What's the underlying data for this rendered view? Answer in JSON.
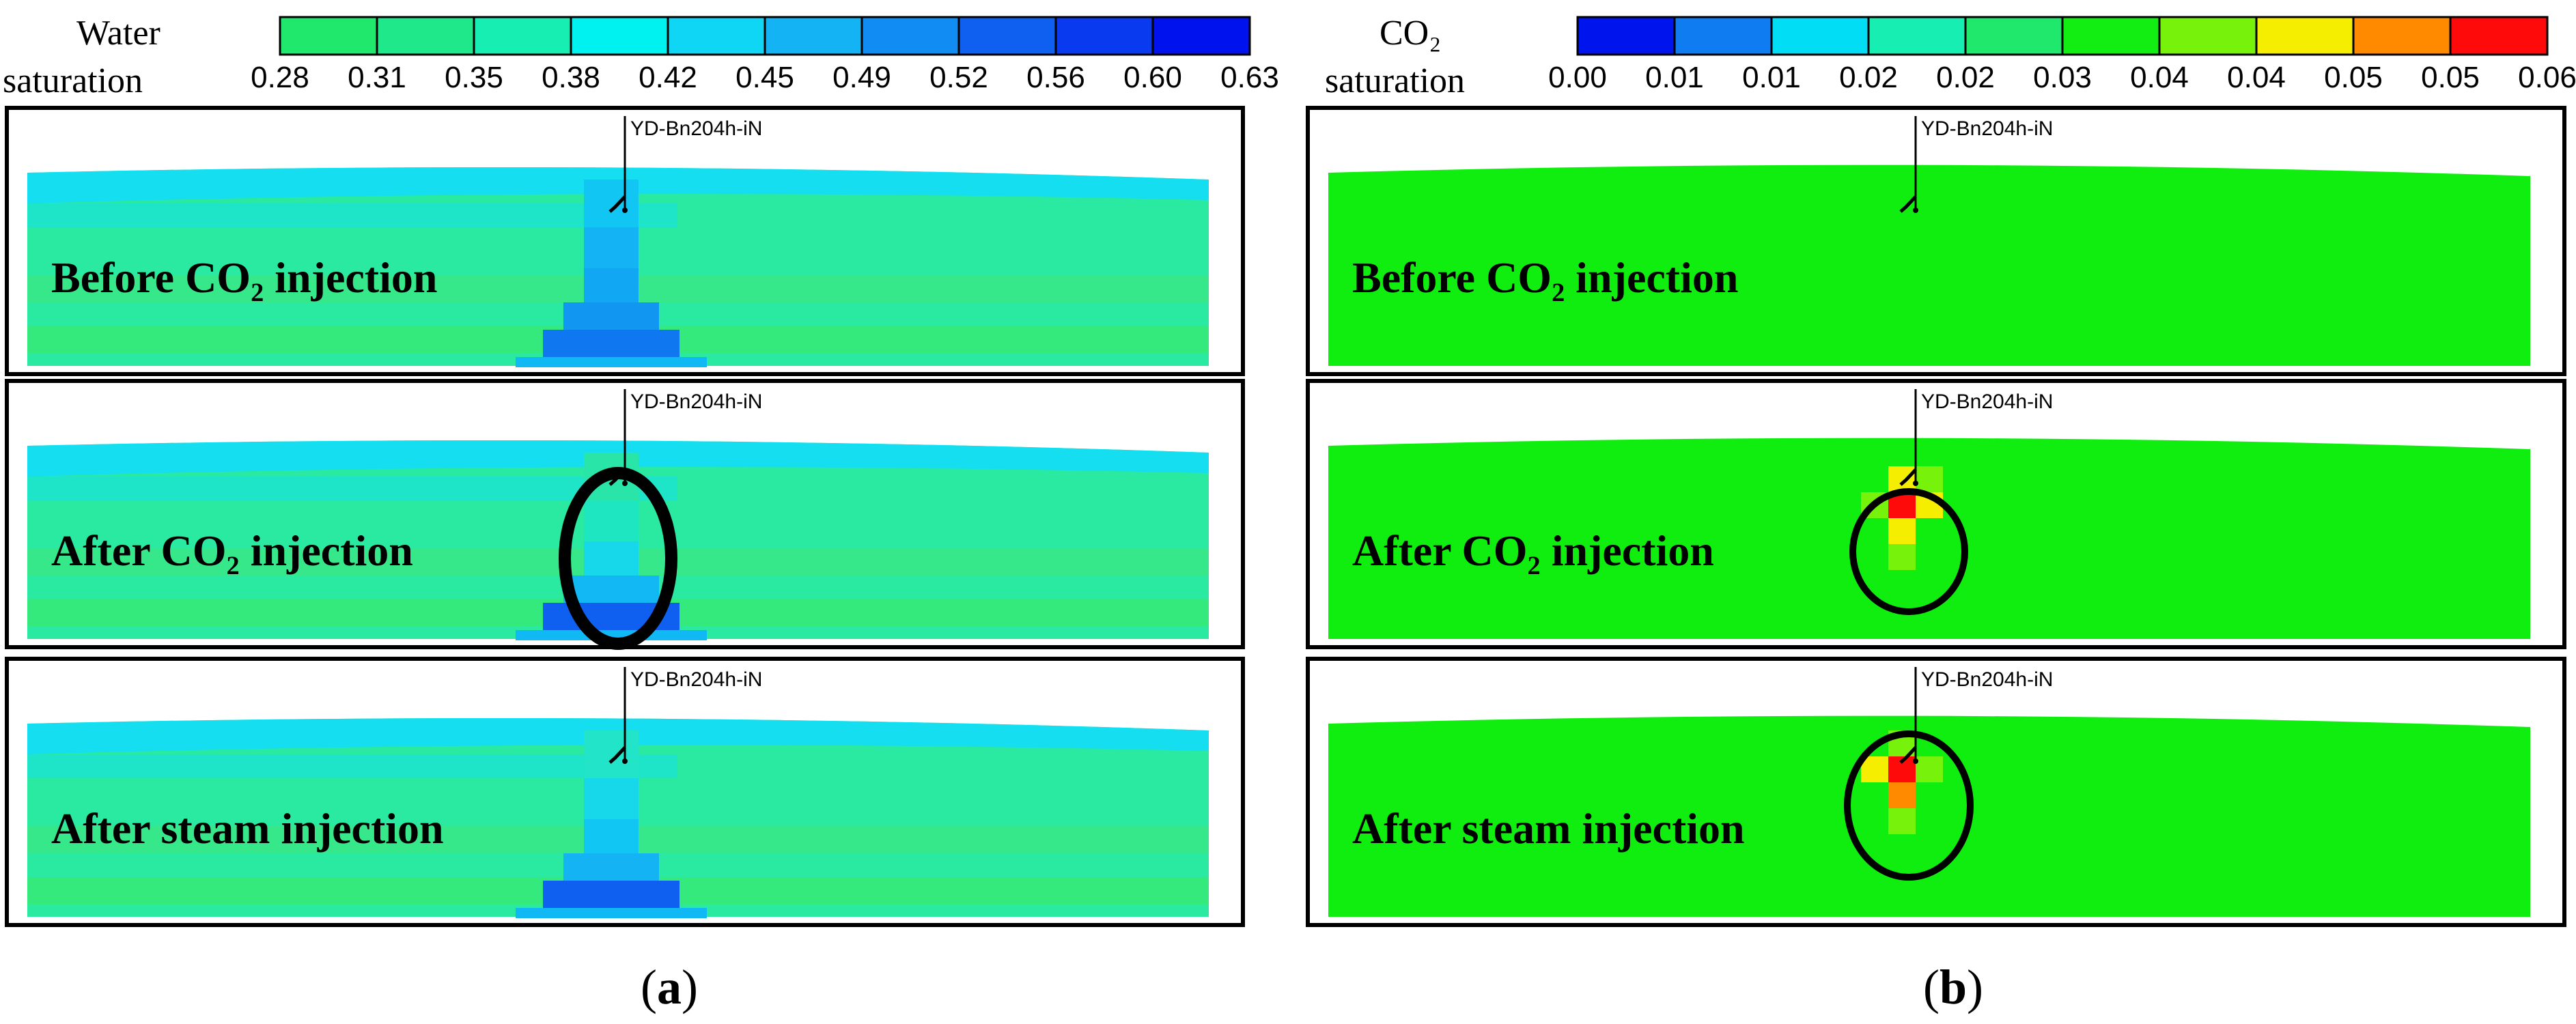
{
  "panel_a": {
    "legend_title_line1": "Water",
    "legend_title_line2": "saturation",
    "legend_colors": [
      "#1fe86c",
      "#1ee88a",
      "#17eeb2",
      "#00f2f0",
      "#10d6f6",
      "#13b3f4",
      "#118cf2",
      "#0f5ff0",
      "#0a3af0",
      "#0012ee"
    ],
    "legend_ticks": [
      "0.28",
      "0.31",
      "0.35",
      "0.38",
      "0.42",
      "0.45",
      "0.49",
      "0.52",
      "0.56",
      "0.60",
      "0.63"
    ],
    "well_name": "YD-Bn204h-iN",
    "rows": [
      {
        "label": "Before CO₂ injection"
      },
      {
        "label": "After CO₂ injection"
      },
      {
        "label": "After steam injection"
      }
    ],
    "caption_open": "(",
    "caption_letter": "a",
    "caption_close": ")"
  },
  "panel_b": {
    "legend_title_line1": "CO₂",
    "legend_title_line2": "saturation",
    "legend_colors": [
      "#0015ee",
      "#0f7cf2",
      "#00ddf4",
      "#17eeb2",
      "#1fe86c",
      "#12ee12",
      "#77f20a",
      "#f5ee00",
      "#ff8a00",
      "#ff0a0a"
    ],
    "legend_ticks": [
      "0.00",
      "0.01",
      "0.01",
      "0.02",
      "0.02",
      "0.03",
      "0.04",
      "0.04",
      "0.05",
      "0.05",
      "0.06"
    ],
    "well_name": "YD-Bn204h-iN",
    "rows": [
      {
        "label": "Before CO₂ injection"
      },
      {
        "label": "After CO₂ injection"
      },
      {
        "label": "After steam injection"
      }
    ],
    "caption_open": "(",
    "caption_letter": "b",
    "caption_close": ")"
  },
  "colors": {
    "reservoir_green": "#10ee10",
    "water_bg": "#2ae9a0",
    "water_top": "#14def0",
    "frame": "#000000"
  }
}
